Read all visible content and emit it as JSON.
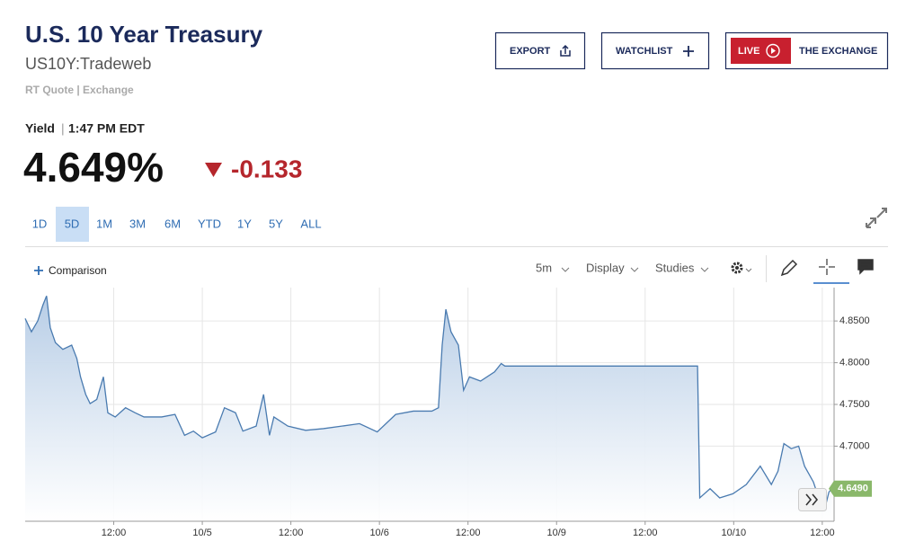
{
  "header": {
    "title": "U.S. 10 Year Treasury",
    "symbol": "US10Y:Tradeweb",
    "quote_source": "RT Quote | Exchange",
    "export": "EXPORT",
    "watchlist": "WATCHLIST",
    "live": "LIVE",
    "exchange": "THE EXCHANGE"
  },
  "quote": {
    "label": "Yield",
    "time": "1:47 PM EDT",
    "price": "4.649%",
    "change": "-0.133"
  },
  "ranges": [
    "1D",
    "5D",
    "1M",
    "3M",
    "6M",
    "YTD",
    "1Y",
    "5Y",
    "ALL"
  ],
  "toolbar": {
    "comparison": "Comparison",
    "interval": "5m",
    "display": "Display",
    "studies": "Studies"
  },
  "chart_data": {
    "type": "line",
    "color": "#4a7bb0",
    "grid": true,
    "x": [
      0,
      0.85,
      1.7,
      2.4,
      2.9,
      3.4,
      4.1,
      5.1,
      6.3,
      7.0,
      7.5,
      8.2,
      8.8,
      9.7,
      10.6,
      11.2,
      12.2,
      13.6,
      14.9,
      16.1,
      18.5,
      20.3,
      21.6,
      22.8,
      24.0,
      25.8,
      27.0,
      28.5,
      29.5,
      31.3,
      32.3,
      33.1,
      33.7,
      35.6,
      38.0,
      40.4,
      42.9,
      45.3,
      47.7,
      50.2,
      52.6,
      55.1,
      56.0,
      56.5,
      57.0,
      57.7,
      58.7,
      59.4,
      60.2,
      61.7,
      63.6,
      64.5,
      65.0,
      72.1,
      91.1,
      91.4,
      92.8,
      94.1,
      95.9,
      97.7,
      99.6,
      101.1,
      102.0,
      102.8,
      103.8,
      104.8,
      105.6,
      106.8,
      107.7,
      108.4,
      108.9,
      109.3
    ],
    "values": [
      4.853,
      4.837,
      4.85,
      4.869,
      4.88,
      4.842,
      4.824,
      4.816,
      4.821,
      4.805,
      4.783,
      4.762,
      4.751,
      4.756,
      4.783,
      4.74,
      4.735,
      4.746,
      4.74,
      4.735,
      4.735,
      4.738,
      4.713,
      4.718,
      4.71,
      4.717,
      4.746,
      4.74,
      4.718,
      4.724,
      4.762,
      4.713,
      4.735,
      4.724,
      4.719,
      4.721,
      4.724,
      4.727,
      4.717,
      4.738,
      4.742,
      4.742,
      4.746,
      4.821,
      4.864,
      4.837,
      4.821,
      4.767,
      4.783,
      4.778,
      4.789,
      4.799,
      4.796,
      4.796,
      4.796,
      4.638,
      4.649,
      4.638,
      4.643,
      4.654,
      4.676,
      4.654,
      4.67,
      4.703,
      4.697,
      4.7,
      4.676,
      4.657,
      4.633,
      4.627,
      4.645,
      4.649
    ],
    "xlim": [
      0,
      109.6
    ],
    "ylim": [
      4.61,
      4.89
    ],
    "xticks": [
      {
        "value": 12,
        "label": "12:00"
      },
      {
        "value": 24,
        "label": "10/5"
      },
      {
        "value": 36,
        "label": "12:00"
      },
      {
        "value": 48,
        "label": "10/6"
      },
      {
        "value": 60,
        "label": "12:00"
      },
      {
        "value": 72,
        "label": "10/9"
      },
      {
        "value": 84,
        "label": "12:00"
      },
      {
        "value": 96,
        "label": "10/10"
      },
      {
        "value": 108,
        "label": "12:00"
      }
    ],
    "yticks": [
      {
        "value": 4.85,
        "label": "4.8500"
      },
      {
        "value": 4.8,
        "label": "4.8000"
      },
      {
        "value": 4.75,
        "label": "4.7500"
      },
      {
        "value": 4.7,
        "label": "4.7000"
      }
    ],
    "current": {
      "value": 4.649,
      "label": "4.6490"
    }
  }
}
